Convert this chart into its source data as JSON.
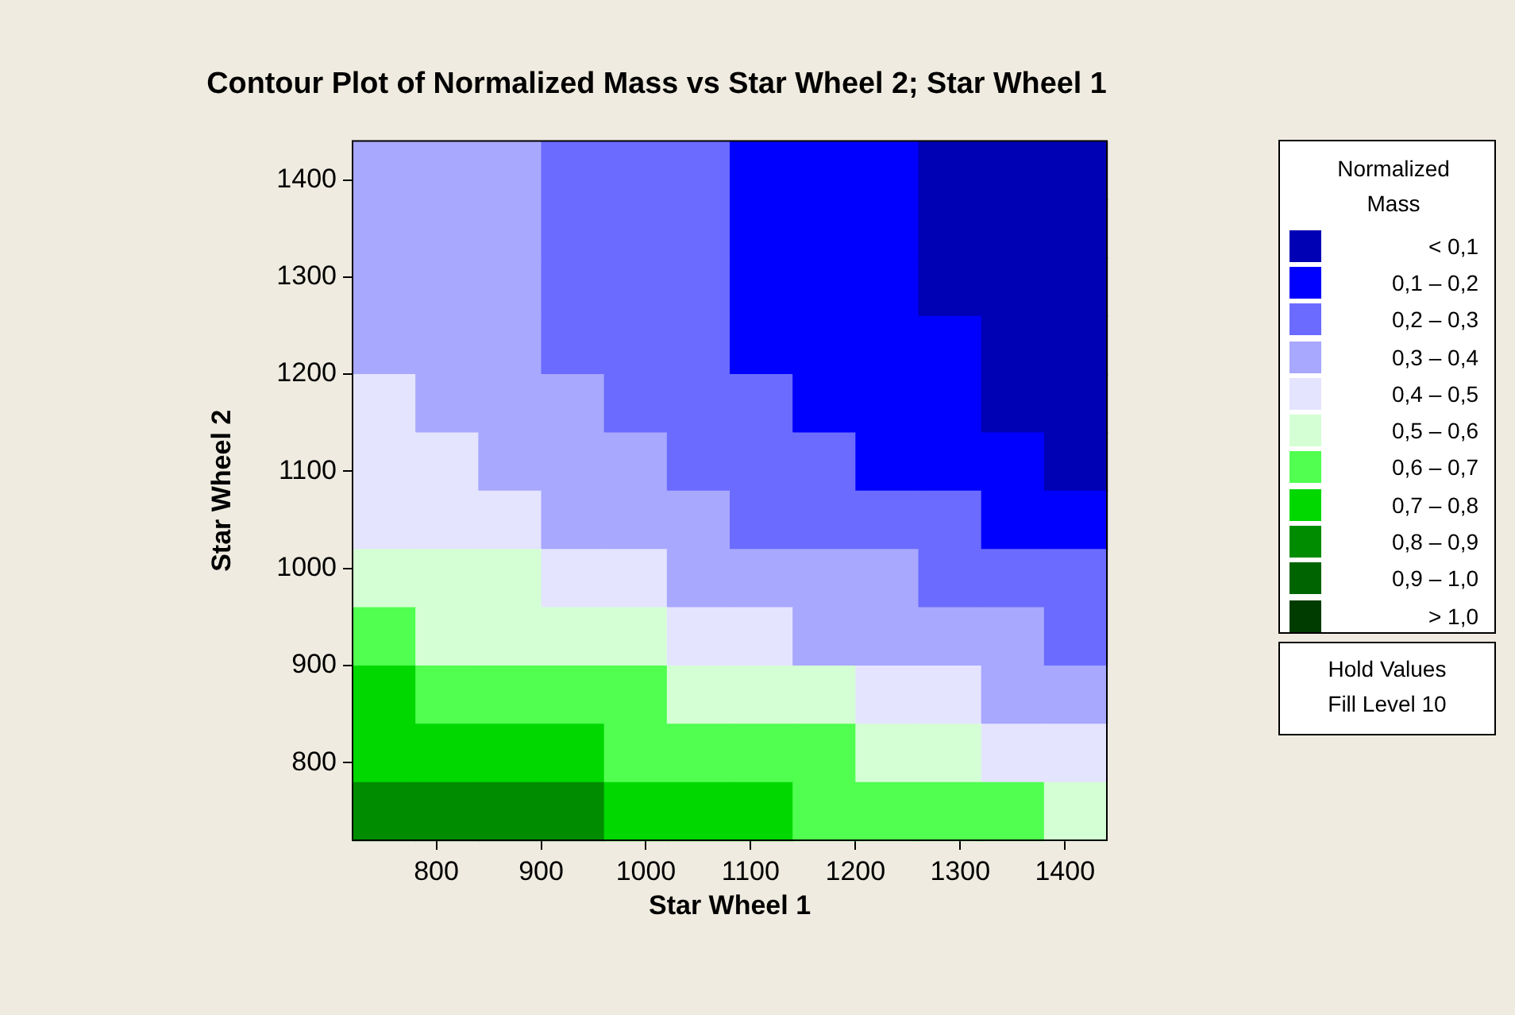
{
  "chart_data": {
    "type": "heatmap",
    "title": "Contour Plot of Normalized Mass vs Star Wheel 2; Star Wheel 1",
    "xlabel": "Star Wheel 1",
    "ylabel": "Star Wheel 2",
    "clabel": "Normalized Mass",
    "xlim": [
      720,
      1440
    ],
    "xticks": [
      800,
      900,
      1000,
      1100,
      1200,
      1300,
      1400
    ],
    "ylim": [
      720,
      1440
    ],
    "yticks": [
      800,
      900,
      1000,
      1100,
      1200,
      1300,
      1400
    ],
    "cticks": [
      {
        "value": 0.05,
        "label": "< 0,1"
      },
      {
        "value": 0.15,
        "label": "0,1 – 0,2"
      },
      {
        "value": 0.25,
        "label": "0,2 – 0,3"
      },
      {
        "value": 0.35,
        "label": "0,3 – 0,4"
      },
      {
        "value": 0.45,
        "label": "0,4 – 0,5"
      },
      {
        "value": 0.55,
        "label": "0,5 – 0,6"
      },
      {
        "value": 0.65,
        "label": "0,6 – 0,7"
      },
      {
        "value": 0.75,
        "label": "0,7 – 0,8"
      },
      {
        "value": 0.85,
        "label": "0,8 – 0,9"
      },
      {
        "value": 0.95,
        "label": "0,9 – 1,0"
      },
      {
        "value": 1.05,
        "label": "> 1,0"
      }
    ],
    "colors": [
      "#0000b4",
      "#0000ff",
      "#6b6bff",
      "#a8a8ff",
      "#e4e4ff",
      "#d4ffd4",
      "#50ff50",
      "#00d800",
      "#008c00",
      "#006400",
      "#003c00"
    ],
    "cells": [
      [
        0.35,
        0.35,
        0.35,
        0.25,
        0.25,
        0.25,
        0.15,
        0.15,
        0.15,
        0.05,
        0.05,
        0.05
      ],
      [
        0.35,
        0.35,
        0.35,
        0.25,
        0.25,
        0.25,
        0.15,
        0.15,
        0.15,
        0.05,
        0.05,
        0.05
      ],
      [
        0.35,
        0.35,
        0.35,
        0.25,
        0.25,
        0.25,
        0.15,
        0.15,
        0.15,
        0.05,
        0.05,
        0.05
      ],
      [
        0.35,
        0.35,
        0.35,
        0.25,
        0.25,
        0.25,
        0.15,
        0.15,
        0.15,
        0.15,
        0.05,
        0.05
      ],
      [
        0.45,
        0.35,
        0.35,
        0.35,
        0.25,
        0.25,
        0.25,
        0.15,
        0.15,
        0.15,
        0.05,
        0.05
      ],
      [
        0.45,
        0.45,
        0.35,
        0.35,
        0.35,
        0.25,
        0.25,
        0.25,
        0.15,
        0.15,
        0.15,
        0.05
      ],
      [
        0.45,
        0.45,
        0.45,
        0.35,
        0.35,
        0.35,
        0.25,
        0.25,
        0.25,
        0.25,
        0.15,
        0.15
      ],
      [
        0.55,
        0.55,
        0.55,
        0.45,
        0.45,
        0.35,
        0.35,
        0.35,
        0.35,
        0.25,
        0.25,
        0.25
      ],
      [
        0.65,
        0.55,
        0.55,
        0.55,
        0.55,
        0.45,
        0.45,
        0.35,
        0.35,
        0.35,
        0.35,
        0.25
      ],
      [
        0.75,
        0.65,
        0.65,
        0.65,
        0.65,
        0.55,
        0.55,
        0.55,
        0.45,
        0.45,
        0.35,
        0.35
      ],
      [
        0.75,
        0.75,
        0.75,
        0.75,
        0.65,
        0.65,
        0.65,
        0.65,
        0.55,
        0.55,
        0.45,
        0.45
      ],
      [
        0.85,
        0.85,
        0.85,
        0.85,
        0.75,
        0.75,
        0.75,
        0.65,
        0.65,
        0.65,
        0.65,
        0.55
      ]
    ],
    "annotations": [
      "Hold Values",
      "Fill Level 10"
    ]
  }
}
